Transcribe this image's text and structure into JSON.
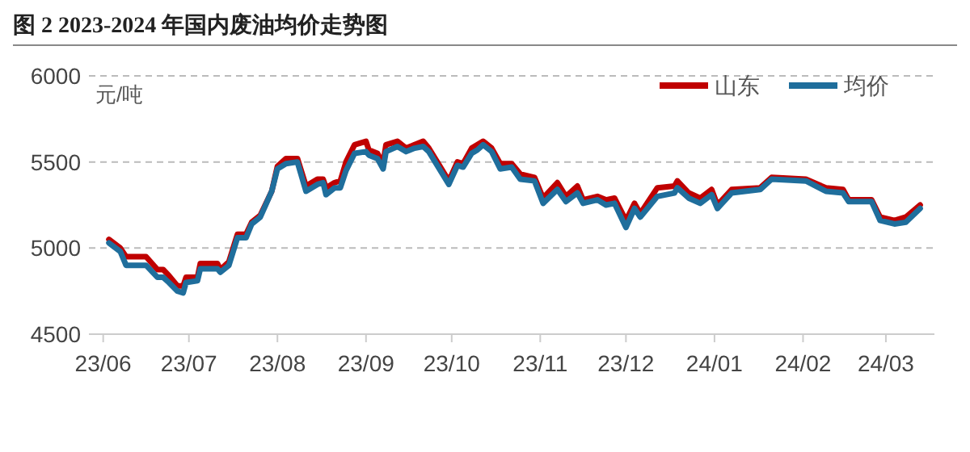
{
  "chart_data": {
    "type": "line",
    "title": "图 2 2023-2024 年国内废油均价走势图",
    "ylabel": "元/吨",
    "x": [
      "2023-06-03",
      "2023-06-07",
      "2023-06-09",
      "2023-06-16",
      "2023-06-20",
      "2023-06-22",
      "2023-06-24",
      "2023-06-27",
      "2023-06-29",
      "2023-06-30",
      "2023-07-04",
      "2023-07-05",
      "2023-07-11",
      "2023-07-12",
      "2023-07-15",
      "2023-07-18",
      "2023-07-21",
      "2023-07-23",
      "2023-07-26",
      "2023-07-30",
      "2023-08-01",
      "2023-08-04",
      "2023-08-08",
      "2023-08-11",
      "2023-08-15",
      "2023-08-17",
      "2023-08-18",
      "2023-08-21",
      "2023-08-23",
      "2023-08-25",
      "2023-08-28",
      "2023-09-01",
      "2023-09-02",
      "2023-09-05",
      "2023-09-07",
      "2023-09-08",
      "2023-09-12",
      "2023-09-15",
      "2023-09-18",
      "2023-09-21",
      "2023-09-23",
      "2023-09-30",
      "2023-10-03",
      "2023-10-05",
      "2023-10-08",
      "2023-10-10",
      "2023-10-12",
      "2023-10-15",
      "2023-10-18",
      "2023-10-22",
      "2023-10-25",
      "2023-10-30",
      "2023-11-02",
      "2023-11-07",
      "2023-11-10",
      "2023-11-14",
      "2023-11-16",
      "2023-11-21",
      "2023-11-24",
      "2023-11-27",
      "2023-12-01",
      "2023-12-04",
      "2023-12-06",
      "2023-12-12",
      "2023-12-18",
      "2023-12-19",
      "2023-12-23",
      "2023-12-27",
      "2023-12-31",
      "2024-01-02",
      "2024-01-07",
      "2024-01-17",
      "2024-01-21",
      "2024-02-02",
      "2024-02-09",
      "2024-02-15",
      "2024-02-17",
      "2024-02-25",
      "2024-02-28",
      "2024-03-04",
      "2024-03-08",
      "2024-03-13"
    ],
    "series": [
      {
        "name": "山东",
        "color": "#c00000",
        "values": [
          5050,
          5000,
          4950,
          4950,
          4875,
          4875,
          4840,
          4780,
          4780,
          4830,
          4830,
          4910,
          4910,
          4875,
          4920,
          5080,
          5080,
          5150,
          5190,
          5330,
          5475,
          5520,
          5520,
          5360,
          5400,
          5400,
          5350,
          5380,
          5390,
          5500,
          5600,
          5620,
          5570,
          5550,
          5490,
          5600,
          5620,
          5580,
          5600,
          5620,
          5580,
          5390,
          5500,
          5490,
          5580,
          5600,
          5620,
          5580,
          5490,
          5490,
          5430,
          5410,
          5290,
          5380,
          5300,
          5360,
          5280,
          5300,
          5280,
          5290,
          5160,
          5260,
          5200,
          5350,
          5360,
          5390,
          5320,
          5290,
          5340,
          5250,
          5340,
          5350,
          5410,
          5400,
          5350,
          5340,
          5280,
          5280,
          5180,
          5160,
          5180,
          5250
        ]
      },
      {
        "name": "均价",
        "color": "#1f6e9c",
        "values": [
          5030,
          4980,
          4900,
          4900,
          4830,
          4830,
          4800,
          4750,
          4740,
          4800,
          4810,
          4880,
          4880,
          4860,
          4900,
          5060,
          5060,
          5140,
          5180,
          5330,
          5460,
          5490,
          5500,
          5330,
          5370,
          5380,
          5310,
          5350,
          5350,
          5450,
          5550,
          5560,
          5540,
          5520,
          5460,
          5560,
          5590,
          5560,
          5580,
          5590,
          5560,
          5370,
          5480,
          5470,
          5550,
          5570,
          5600,
          5560,
          5460,
          5470,
          5400,
          5390,
          5260,
          5340,
          5270,
          5320,
          5260,
          5280,
          5250,
          5260,
          5120,
          5230,
          5180,
          5300,
          5320,
          5350,
          5290,
          5260,
          5310,
          5230,
          5320,
          5340,
          5400,
          5390,
          5330,
          5320,
          5270,
          5270,
          5160,
          5140,
          5150,
          5230
        ]
      }
    ],
    "xlim": [
      "2023-05-27",
      "2024-03-18"
    ],
    "xticks": [
      {
        "value": "2023-06-01",
        "label": "23/06"
      },
      {
        "value": "2023-07-01",
        "label": "23/07"
      },
      {
        "value": "2023-08-01",
        "label": "23/08"
      },
      {
        "value": "2023-09-01",
        "label": "23/09"
      },
      {
        "value": "2023-10-01",
        "label": "23/10"
      },
      {
        "value": "2023-11-01",
        "label": "23/11"
      },
      {
        "value": "2023-12-01",
        "label": "23/12"
      },
      {
        "value": "2024-01-01",
        "label": "24/01"
      },
      {
        "value": "2024-02-01",
        "label": "24/02"
      },
      {
        "value": "2024-03-01",
        "label": "24/03"
      }
    ],
    "ylim": [
      4500,
      6000
    ],
    "yticks": [
      4500,
      5000,
      5500,
      6000
    ],
    "grid": "y",
    "legend": "top right",
    "marker": "none",
    "line_style": "solid"
  }
}
